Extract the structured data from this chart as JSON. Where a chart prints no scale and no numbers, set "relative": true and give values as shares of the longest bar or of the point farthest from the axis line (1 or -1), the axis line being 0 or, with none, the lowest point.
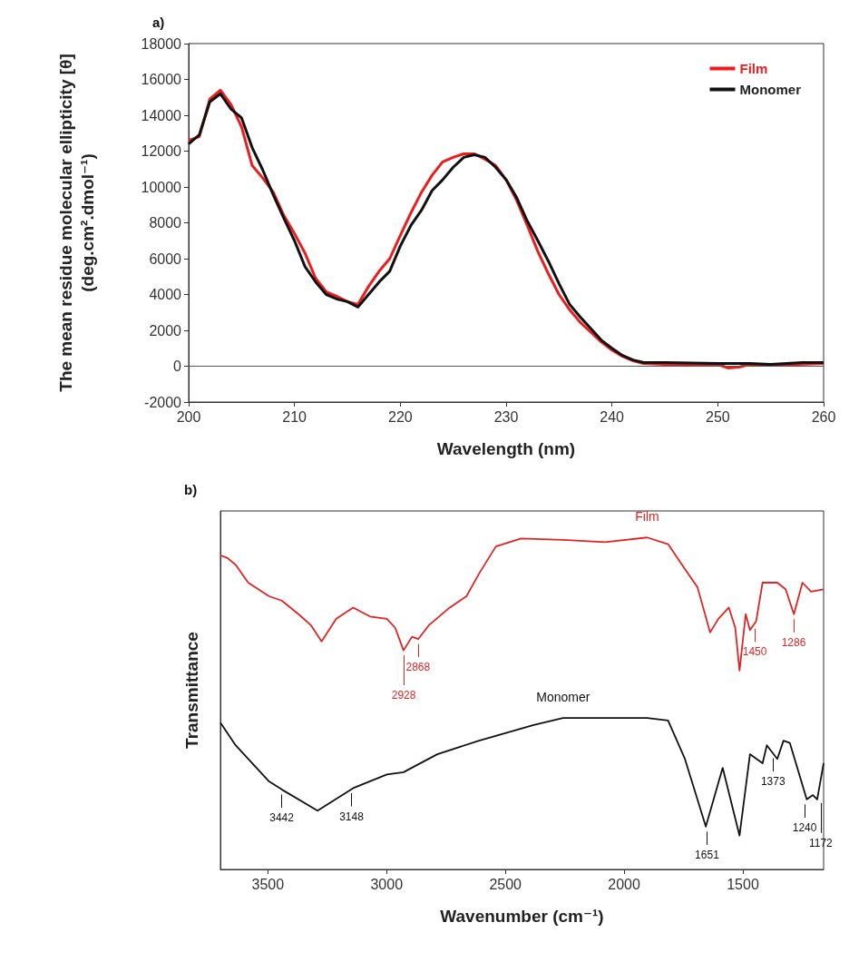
{
  "chart_data": [
    {
      "type": "line",
      "title": "a)",
      "xlabel": "Wavelength (nm)",
      "ylabel": "The mean residue molecular ellipticity [θ]\n(deg.cm².dmol⁻¹)",
      "xlim": [
        200,
        260
      ],
      "xticks": [
        200,
        210,
        220,
        230,
        240,
        250,
        260
      ],
      "ylim": [
        -2000,
        18000
      ],
      "yticks": [
        -2000,
        0,
        2000,
        4000,
        6000,
        8000,
        10000,
        12000,
        14000,
        16000,
        18000
      ],
      "grid": false,
      "legend": "top right",
      "marker": "none",
      "line_style": "solid",
      "ref_lines": [
        {
          "axis": "y",
          "value": 0,
          "color": "#555555"
        }
      ],
      "series": [
        {
          "name": "Film",
          "color": "#ee1c1c",
          "x": [
            200,
            201,
            202,
            203,
            204,
            205,
            206,
            207,
            208,
            209,
            210,
            211,
            212,
            213,
            214,
            215,
            216,
            217,
            218,
            219,
            220,
            221,
            222,
            223,
            224,
            225,
            226,
            227,
            228,
            229,
            230,
            231,
            232,
            233,
            234,
            235,
            236,
            237,
            238,
            239,
            240,
            241,
            242,
            243,
            245,
            248,
            250,
            251,
            252,
            253,
            255,
            260
          ],
          "values": [
            12600,
            12800,
            14900,
            15400,
            14600,
            13350,
            11200,
            10500,
            9700,
            8400,
            7400,
            6300,
            4900,
            4150,
            3900,
            3600,
            3450,
            4450,
            5300,
            6000,
            7300,
            8550,
            9700,
            10650,
            11400,
            11650,
            11850,
            11850,
            11550,
            11200,
            10400,
            9250,
            7850,
            6400,
            5150,
            4000,
            3150,
            2450,
            1900,
            1350,
            900,
            550,
            300,
            150,
            100,
            50,
            100,
            -100,
            -50,
            100,
            50,
            150
          ]
        },
        {
          "name": "Monomer",
          "color": "#111111",
          "x": [
            200,
            201,
            202,
            203,
            204,
            205,
            206,
            207,
            208,
            209,
            210,
            211,
            212,
            213,
            214,
            215,
            216,
            217,
            218,
            219,
            220,
            221,
            222,
            223,
            224,
            225,
            226,
            227,
            228,
            229,
            230,
            231,
            232,
            233,
            234,
            235,
            236,
            237,
            238,
            239,
            240,
            241,
            242,
            243,
            245,
            250,
            253,
            255,
            258,
            260
          ],
          "values": [
            12400,
            12900,
            14750,
            15200,
            14350,
            13850,
            12200,
            10950,
            9550,
            8250,
            7000,
            5550,
            4700,
            4000,
            3750,
            3600,
            3300,
            4000,
            4700,
            5300,
            6700,
            7850,
            8700,
            9800,
            10400,
            11100,
            11650,
            11800,
            11650,
            11100,
            10400,
            9400,
            8100,
            7000,
            5850,
            4600,
            3450,
            2750,
            2100,
            1450,
            1000,
            600,
            350,
            200,
            200,
            150,
            150,
            100,
            200,
            200
          ]
        }
      ]
    },
    {
      "type": "line",
      "title": "b)",
      "xlabel": "Wavenumber (cm⁻¹)",
      "ylabel": "Transmittance",
      "relative": true,
      "xlim": [
        3700,
        1160
      ],
      "xticks": [
        3500,
        3000,
        2500,
        2000,
        1500
      ],
      "tick_labels": "x",
      "grid": false,
      "legend": false,
      "marker": "none",
      "line_style": "solid",
      "annotations": [
        {
          "text": "2868",
          "x": 2868,
          "y": 0.694
        },
        {
          "text": "2928",
          "x": 2928,
          "y": 0.66
        },
        {
          "text": "1450",
          "x": 1450,
          "y": 0.74
        },
        {
          "text": "1286",
          "x": 1286,
          "y": 0.769
        },
        {
          "text": "3442",
          "x": 3442,
          "y": 0.241
        },
        {
          "text": "3148",
          "x": 3148,
          "y": 0.245
        },
        {
          "text": "1651",
          "x": 1651,
          "y": 0.129
        },
        {
          "text": "1373",
          "x": 1373,
          "y": 0.35
        },
        {
          "text": "1240",
          "x": 1240,
          "y": 0.211
        },
        {
          "text": "1172",
          "x": 1172,
          "y": 0.215
        }
      ],
      "series": [
        {
          "name": "Film",
          "color": "#e02424",
          "x": [
            3700,
            3672,
            3636,
            3583,
            3495,
            3442,
            3371,
            3318,
            3274,
            3212,
            3141,
            3070,
            2999,
            2964,
            2929,
            2893,
            2867,
            2823,
            2734,
            2664,
            2611,
            2540,
            2434,
            2257,
            2080,
            1903,
            1815,
            1744,
            1691,
            1638,
            1603,
            1559,
            1532,
            1514,
            1488,
            1470,
            1444,
            1417,
            1355,
            1320,
            1285,
            1249,
            1213,
            1160
          ],
          "values": [
            0.946,
            0.939,
            0.918,
            0.864,
            0.823,
            0.81,
            0.769,
            0.735,
            0.687,
            0.755,
            0.789,
            0.762,
            0.755,
            0.728,
            0.66,
            0.701,
            0.694,
            0.735,
            0.789,
            0.823,
            0.891,
            0.973,
            0.997,
            0.993,
            0.986,
            1,
            0.98,
            0.905,
            0.85,
            0.714,
            0.755,
            0.789,
            0.728,
            0.599,
            0.769,
            0.721,
            0.748,
            0.864,
            0.864,
            0.844,
            0.769,
            0.864,
            0.837,
            0.844
          ]
        },
        {
          "name": "Monomer",
          "color": "#111111",
          "x": [
            3700,
            3636,
            3495,
            3442,
            3291,
            3141,
            2999,
            2929,
            2787,
            2611,
            2381,
            2257,
            1903,
            1815,
            1744,
            1656,
            1585,
            1514,
            1470,
            1417,
            1399,
            1355,
            1329,
            1302,
            1231,
            1205,
            1187,
            1160
          ],
          "values": [
            0.442,
            0.374,
            0.265,
            0.241,
            0.177,
            0.245,
            0.286,
            0.293,
            0.347,
            0.388,
            0.435,
            0.456,
            0.456,
            0.449,
            0.333,
            0.129,
            0.306,
            0.102,
            0.347,
            0.32,
            0.374,
            0.333,
            0.388,
            0.381,
            0.211,
            0.224,
            0.211,
            0.32
          ]
        }
      ]
    }
  ]
}
